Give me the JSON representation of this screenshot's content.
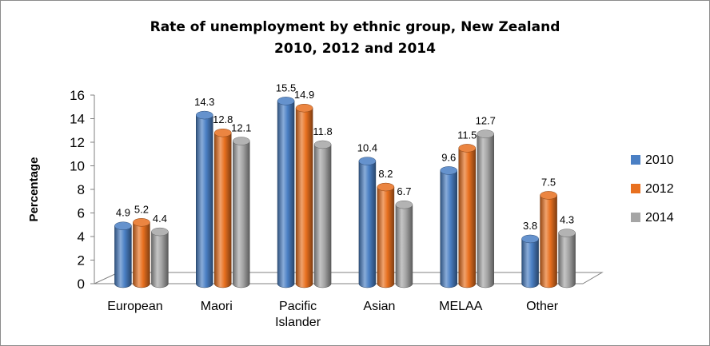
{
  "chart_data": {
    "type": "bar",
    "title": [
      "Rate of unemployment by ethnic group, New Zealand",
      "2010, 2012 and 2014"
    ],
    "ylabel": "Percentage",
    "ylim": [
      0,
      16
    ],
    "yticks": [
      0,
      2,
      4,
      6,
      8,
      10,
      12,
      14,
      16
    ],
    "categories": [
      [
        "European"
      ],
      [
        "Maori"
      ],
      [
        "Pacific",
        "Islander"
      ],
      [
        "Asian"
      ],
      [
        "MELAA"
      ],
      [
        "Other"
      ]
    ],
    "series": [
      {
        "name": "2010",
        "color": "#4a7fc4",
        "values": [
          4.9,
          14.3,
          15.5,
          10.4,
          9.6,
          3.8
        ]
      },
      {
        "name": "2012",
        "color": "#e8701f",
        "values": [
          5.2,
          12.8,
          14.9,
          8.2,
          11.5,
          7.5
        ]
      },
      {
        "name": "2014",
        "color": "#a5a5a5",
        "values": [
          4.4,
          12.1,
          11.8,
          6.7,
          12.7,
          4.3
        ]
      }
    ],
    "legend_position": "right",
    "grid": false,
    "style": "3d-cylinder"
  }
}
